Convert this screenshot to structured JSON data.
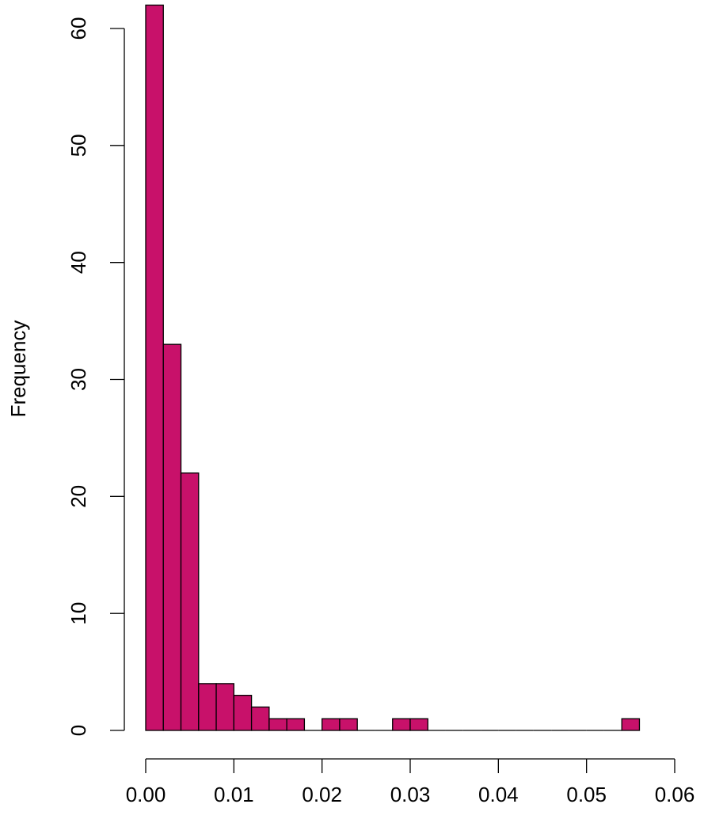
{
  "chart_data": {
    "type": "bar",
    "subtype": "histogram",
    "title": "",
    "xlabel": "",
    "ylabel": "Frequency",
    "bin_width": 0.002,
    "bin_start": 0.0,
    "bins": [
      {
        "x0": 0.0,
        "x1": 0.002,
        "count": 62
      },
      {
        "x0": 0.002,
        "x1": 0.004,
        "count": 33
      },
      {
        "x0": 0.004,
        "x1": 0.006,
        "count": 22
      },
      {
        "x0": 0.006,
        "x1": 0.008,
        "count": 4
      },
      {
        "x0": 0.008,
        "x1": 0.01,
        "count": 4
      },
      {
        "x0": 0.01,
        "x1": 0.012,
        "count": 3
      },
      {
        "x0": 0.012,
        "x1": 0.014,
        "count": 2
      },
      {
        "x0": 0.014,
        "x1": 0.016,
        "count": 1
      },
      {
        "x0": 0.016,
        "x1": 0.018,
        "count": 1
      },
      {
        "x0": 0.018,
        "x1": 0.02,
        "count": 0
      },
      {
        "x0": 0.02,
        "x1": 0.022,
        "count": 1
      },
      {
        "x0": 0.022,
        "x1": 0.024,
        "count": 1
      },
      {
        "x0": 0.024,
        "x1": 0.026,
        "count": 0
      },
      {
        "x0": 0.026,
        "x1": 0.028,
        "count": 0
      },
      {
        "x0": 0.028,
        "x1": 0.03,
        "count": 1
      },
      {
        "x0": 0.03,
        "x1": 0.032,
        "count": 1
      },
      {
        "x0": 0.032,
        "x1": 0.034,
        "count": 0
      },
      {
        "x0": 0.034,
        "x1": 0.036,
        "count": 0
      },
      {
        "x0": 0.036,
        "x1": 0.038,
        "count": 0
      },
      {
        "x0": 0.038,
        "x1": 0.04,
        "count": 0
      },
      {
        "x0": 0.04,
        "x1": 0.042,
        "count": 0
      },
      {
        "x0": 0.042,
        "x1": 0.044,
        "count": 0
      },
      {
        "x0": 0.044,
        "x1": 0.046,
        "count": 0
      },
      {
        "x0": 0.046,
        "x1": 0.048,
        "count": 0
      },
      {
        "x0": 0.048,
        "x1": 0.05,
        "count": 0
      },
      {
        "x0": 0.05,
        "x1": 0.052,
        "count": 0
      },
      {
        "x0": 0.052,
        "x1": 0.054,
        "count": 0
      },
      {
        "x0": 0.054,
        "x1": 0.056,
        "count": 1
      }
    ],
    "xlim": [
      0.0,
      0.06
    ],
    "ylim": [
      0,
      62
    ],
    "x_ticks": [
      0.0,
      0.01,
      0.02,
      0.03,
      0.04,
      0.05,
      0.06
    ],
    "x_tick_labels": [
      "0.00",
      "0.01",
      "0.02",
      "0.03",
      "0.04",
      "0.05",
      "0.06"
    ],
    "y_ticks": [
      0,
      10,
      20,
      30,
      40,
      50,
      60
    ],
    "y_tick_labels": [
      "0",
      "10",
      "20",
      "30",
      "40",
      "50",
      "60"
    ],
    "bar_color": "#c8116a",
    "bar_edge_color": "#000000",
    "grid": false,
    "legend": "none"
  }
}
